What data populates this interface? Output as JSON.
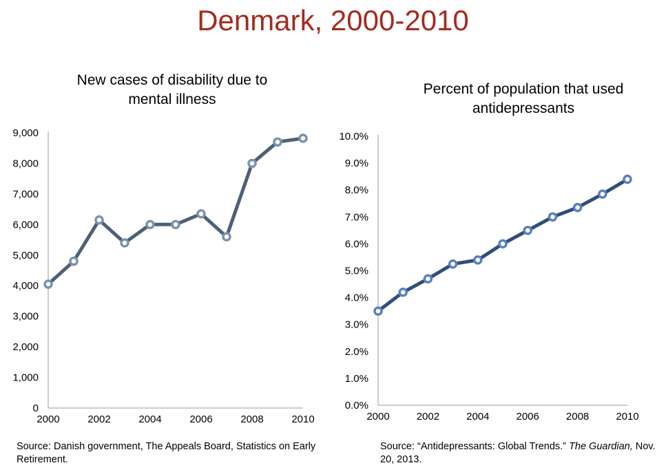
{
  "slide": {
    "title": "Denmark, 2000-2010"
  },
  "sources": {
    "left": "Source: Danish government, The Appeals Board, Statistics on Early Retirement.",
    "right_prefix": "Source:  “Antidepressants: Global Trends.” ",
    "right_publication": "The Guardian,",
    "right_suffix": " Nov. 20, 2013."
  },
  "colors": {
    "title": "#a52a1e",
    "left_line": "#4e6078",
    "left_marker": "#7b92ad",
    "right_line": "#2f4e7c",
    "right_marker": "#5b7fbf"
  },
  "chart_data": [
    {
      "type": "line",
      "title": "New cases of disability due to mental illness",
      "x": [
        2000,
        2001,
        2002,
        2003,
        2004,
        2005,
        2006,
        2007,
        2008,
        2009,
        2010
      ],
      "series": [
        {
          "values": [
            4050,
            4800,
            6150,
            5400,
            6000,
            6000,
            6350,
            5600,
            8000,
            8700,
            8820
          ]
        }
      ],
      "xticks": [
        "2000",
        "2002",
        "2004",
        "2006",
        "2008",
        "2010"
      ],
      "yticks": [
        "0",
        "1,000",
        "2,000",
        "3,000",
        "4,000",
        "5,000",
        "6,000",
        "7,000",
        "8,000",
        "9,000"
      ],
      "xlim": [
        2000,
        2010
      ],
      "ylim": [
        0,
        9000
      ],
      "grid": false,
      "legend": "none"
    },
    {
      "type": "line",
      "title": "Percent of population that used antidepressants",
      "x": [
        2000,
        2001,
        2002,
        2003,
        2004,
        2005,
        2006,
        2007,
        2008,
        2009,
        2010
      ],
      "series": [
        {
          "values": [
            3.5,
            4.2,
            4.7,
            5.25,
            5.4,
            6.0,
            6.5,
            7.0,
            7.35,
            7.85,
            8.4
          ]
        }
      ],
      "xticks": [
        "2000",
        "2002",
        "2004",
        "2006",
        "2008",
        "2010"
      ],
      "yticks": [
        "0.0%",
        "1.0%",
        "2.0%",
        "3.0%",
        "4.0%",
        "5.0%",
        "6.0%",
        "7.0%",
        "8.0%",
        "9.0%",
        "10.0%"
      ],
      "xlim": [
        2000,
        2010
      ],
      "ylim": [
        0,
        10
      ],
      "grid": false,
      "legend": "none"
    }
  ]
}
